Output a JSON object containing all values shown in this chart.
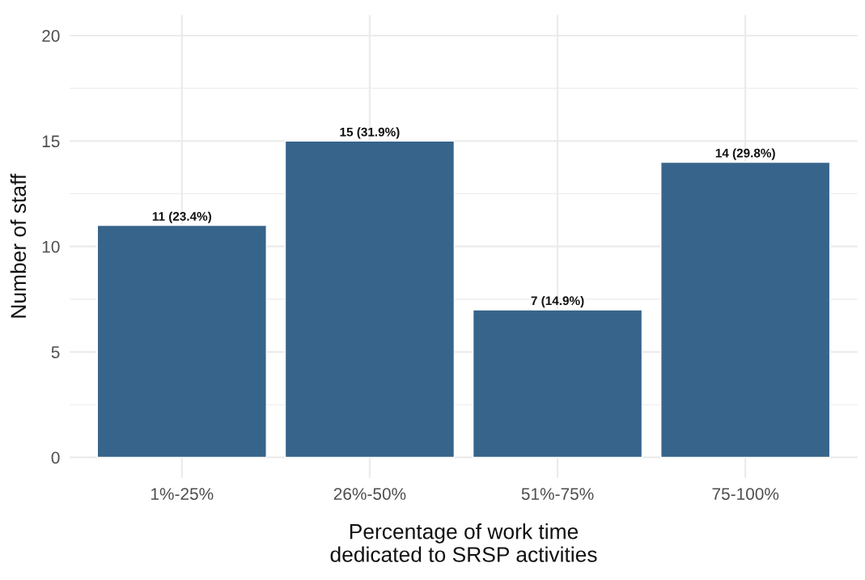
{
  "chart_data": {
    "type": "bar",
    "categories": [
      "1%-25%",
      "26%-50%",
      "51%-75%",
      "75-100%"
    ],
    "values": [
      11,
      15,
      7,
      14
    ],
    "value_labels": [
      "11 (23.4%)",
      "15 (31.9%)",
      "7 (14.9%)",
      "14 (29.8%)"
    ],
    "color": "#37648b",
    "xlabel": "Percentage of work time\ndedicated to SRSP activities",
    "ylabel": "Number of staff",
    "ylim": [
      -1,
      21
    ],
    "yticks": [
      0,
      5,
      10,
      15,
      20
    ],
    "grid": true,
    "legend": false
  }
}
